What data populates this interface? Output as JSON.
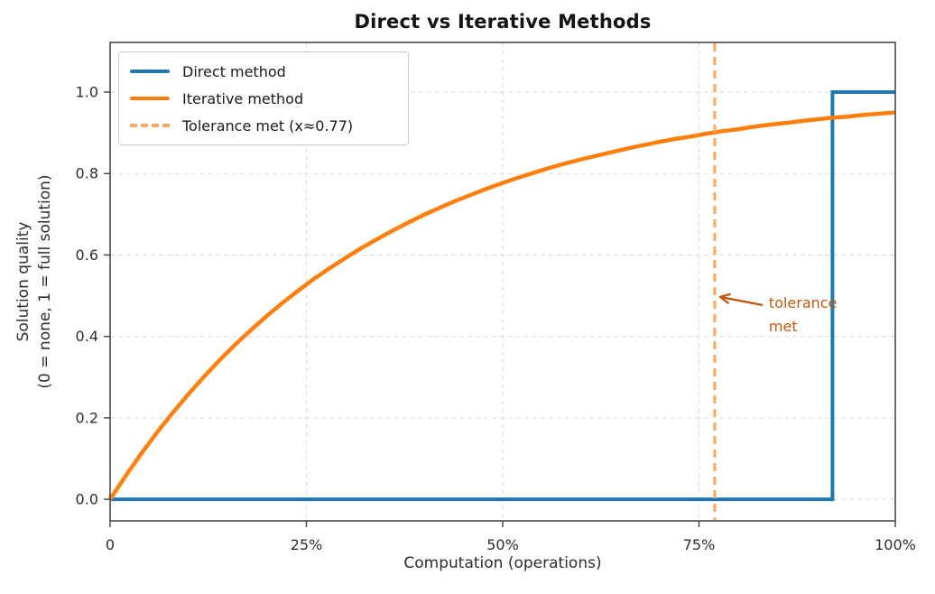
{
  "chart_data": {
    "type": "line",
    "title": "Direct vs Iterative Methods",
    "xlabel": "Computation (operations)",
    "ylabel_lines": [
      "Solution quality",
      "(0 = none, 1 = full solution)"
    ],
    "xlim": [
      0,
      1
    ],
    "ylim": [
      -0.053,
      1.122
    ],
    "grid": true,
    "grid_color": "#d9d9d9",
    "axis_color": "#4a4a4a",
    "text_color": "#2e2e2e",
    "xticks": [
      {
        "v": 0.0,
        "label": "0"
      },
      {
        "v": 0.25,
        "label": "25%"
      },
      {
        "v": 0.5,
        "label": "50%"
      },
      {
        "v": 0.75,
        "label": "75%"
      },
      {
        "v": 1.0,
        "label": "100%"
      }
    ],
    "yticks": [
      {
        "v": 0.0,
        "label": "0.0"
      },
      {
        "v": 0.2,
        "label": "0.2"
      },
      {
        "v": 0.4,
        "label": "0.4"
      },
      {
        "v": 0.6,
        "label": "0.6"
      },
      {
        "v": 0.8,
        "label": "0.8"
      },
      {
        "v": 1.0,
        "label": "1.0"
      }
    ],
    "series": [
      {
        "name": "Direct method",
        "color": "#1f77b4",
        "style": "solid",
        "width": 4,
        "points": [
          [
            0,
            0
          ],
          [
            0.92,
            0
          ],
          [
            0.92,
            1.0
          ],
          [
            1.0,
            1.0
          ]
        ]
      },
      {
        "name": "Iterative method",
        "color": "#ff7f0e",
        "style": "solid",
        "width": 4.5,
        "points": [
          [
            0,
            0
          ],
          [
            0.02,
            0.058
          ],
          [
            0.04,
            0.113
          ],
          [
            0.06,
            0.165
          ],
          [
            0.08,
            0.213
          ],
          [
            0.1,
            0.259
          ],
          [
            0.12,
            0.302
          ],
          [
            0.14,
            0.343
          ],
          [
            0.16,
            0.381
          ],
          [
            0.18,
            0.417
          ],
          [
            0.2,
            0.451
          ],
          [
            0.22,
            0.483
          ],
          [
            0.24,
            0.513
          ],
          [
            0.26,
            0.542
          ],
          [
            0.28,
            0.568
          ],
          [
            0.3,
            0.593
          ],
          [
            0.32,
            0.617
          ],
          [
            0.34,
            0.639
          ],
          [
            0.36,
            0.66
          ],
          [
            0.38,
            0.68
          ],
          [
            0.4,
            0.699
          ],
          [
            0.42,
            0.716
          ],
          [
            0.44,
            0.733
          ],
          [
            0.46,
            0.748
          ],
          [
            0.48,
            0.763
          ],
          [
            0.5,
            0.777
          ],
          [
            0.52,
            0.79
          ],
          [
            0.54,
            0.802
          ],
          [
            0.56,
            0.814
          ],
          [
            0.58,
            0.825
          ],
          [
            0.6,
            0.835
          ],
          [
            0.62,
            0.844
          ],
          [
            0.64,
            0.853
          ],
          [
            0.66,
            0.862
          ],
          [
            0.68,
            0.87
          ],
          [
            0.7,
            0.878
          ],
          [
            0.72,
            0.885
          ],
          [
            0.74,
            0.891
          ],
          [
            0.76,
            0.898
          ],
          [
            0.78,
            0.904
          ],
          [
            0.8,
            0.909
          ],
          [
            0.82,
            0.915
          ],
          [
            0.84,
            0.92
          ],
          [
            0.86,
            0.924
          ],
          [
            0.88,
            0.929
          ],
          [
            0.9,
            0.933
          ],
          [
            0.92,
            0.937
          ],
          [
            0.94,
            0.94
          ],
          [
            0.96,
            0.944
          ],
          [
            0.98,
            0.947
          ],
          [
            1.0,
            0.95
          ]
        ]
      }
    ],
    "vline": {
      "label": "Tolerance met (x≈0.77)",
      "x": 0.77,
      "color": "#ffa65c",
      "width": 3,
      "dash": [
        9,
        6
      ]
    },
    "annotation": {
      "lines": [
        "tolerance",
        "met"
      ],
      "color": "#c4590f",
      "text_xy": [
        0.839,
        0.501
      ],
      "arrow_tail_xy": [
        0.831,
        0.477
      ],
      "arrow_head_xy": [
        0.777,
        0.497
      ]
    },
    "legend": {
      "position": "upper left",
      "items": [
        {
          "label": "Direct method",
          "color": "#1f77b4",
          "style": "solid"
        },
        {
          "label": "Iterative method",
          "color": "#ff7f0e",
          "style": "solid"
        },
        {
          "label": "Tolerance met (x≈0.77)",
          "color": "#ffa65c",
          "style": "dashed"
        }
      ]
    }
  }
}
